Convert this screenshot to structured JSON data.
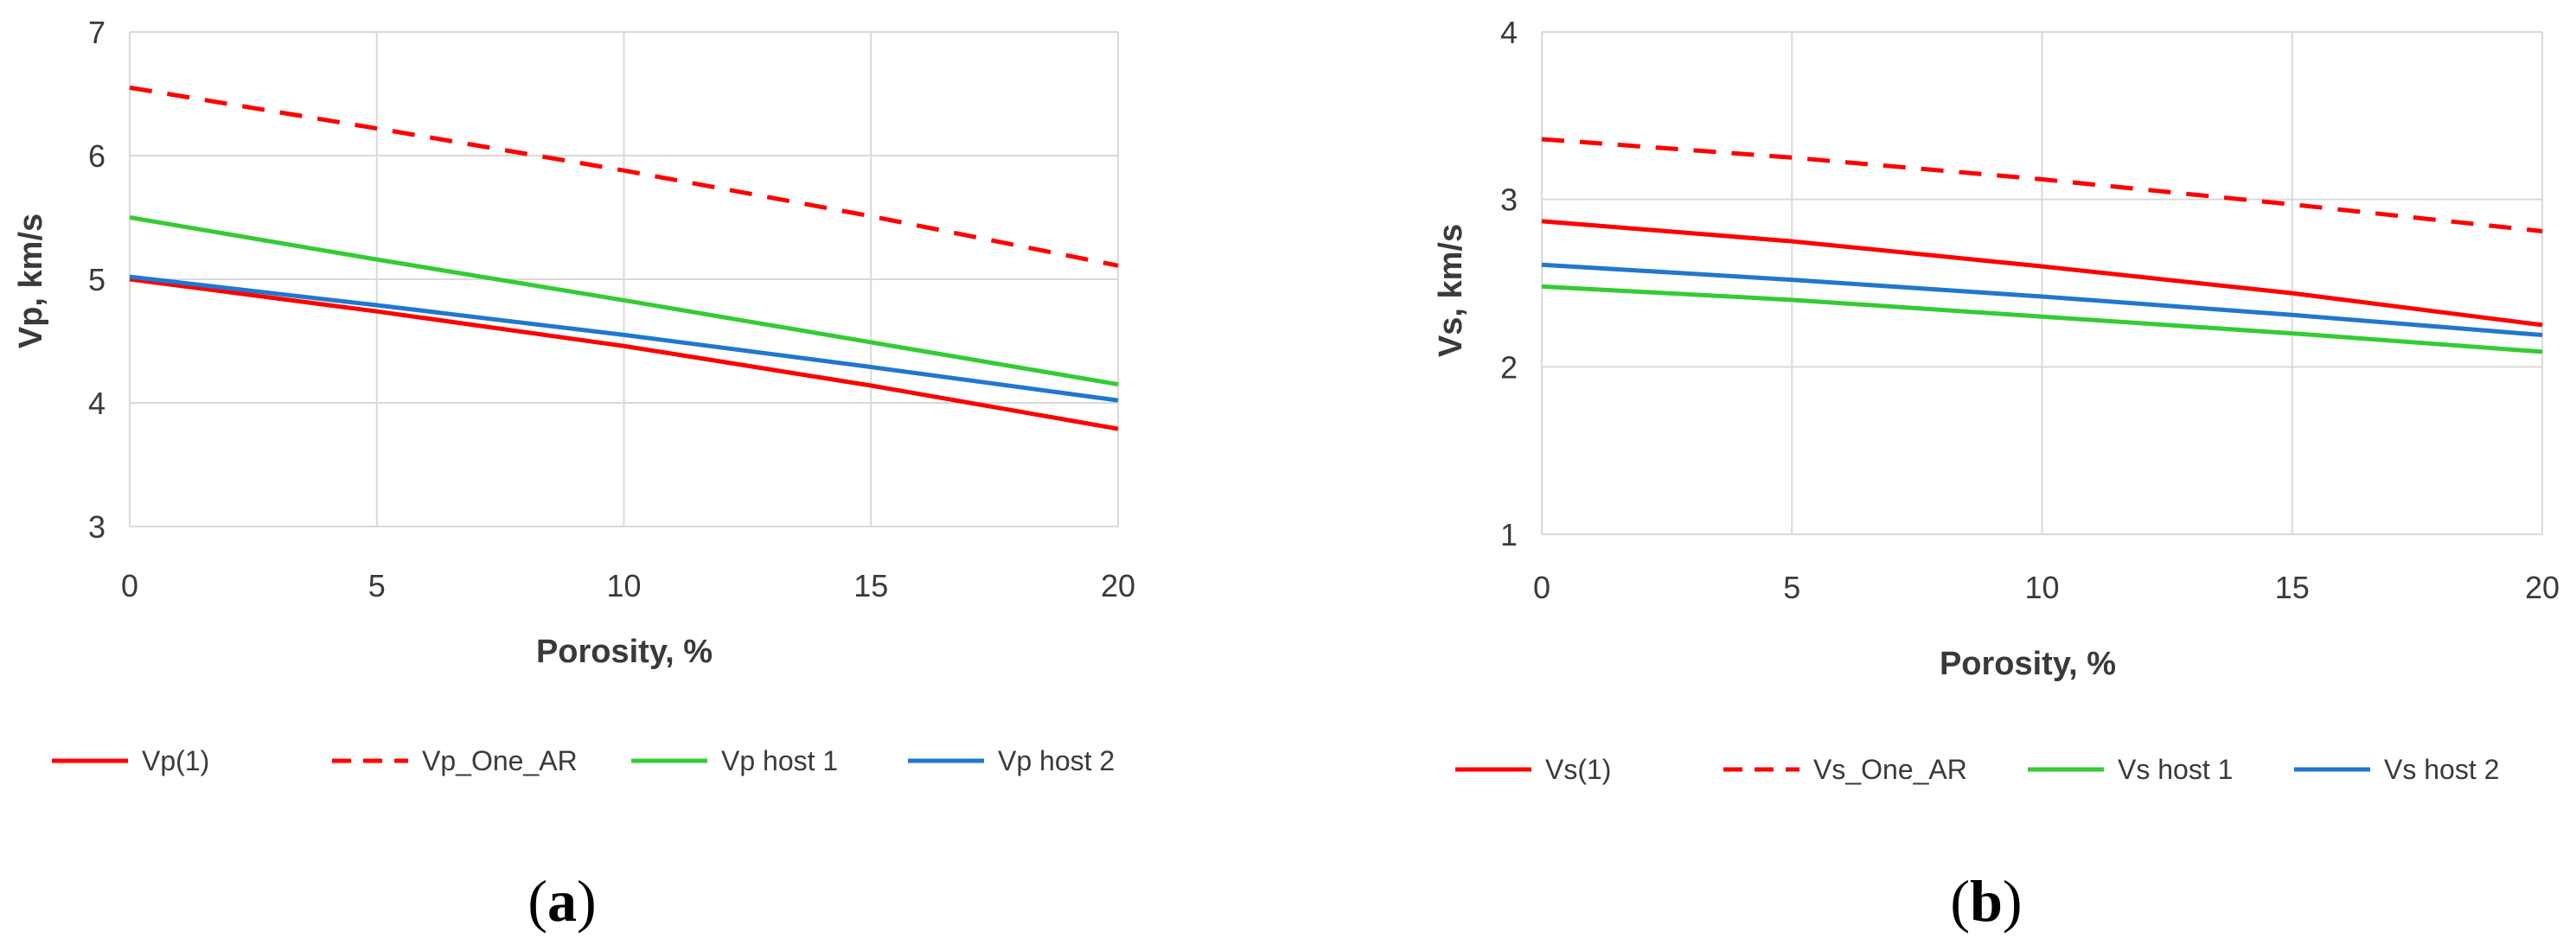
{
  "chart_data": [
    {
      "type": "line",
      "panel_label": "a",
      "xlabel": "Porosity, %",
      "ylabel": "Vp, km/s",
      "xlim": [
        0,
        20
      ],
      "ylim": [
        3,
        7
      ],
      "xticks": [
        0,
        5,
        10,
        15,
        20
      ],
      "yticks": [
        3,
        4,
        5,
        6,
        7
      ],
      "grid": true,
      "legend_position": "bottom",
      "series": [
        {
          "name": "Vp(1)",
          "color": "#ff0000",
          "dash": "solid",
          "x": [
            0,
            5,
            10,
            15,
            20
          ],
          "y": [
            5.0,
            4.74,
            4.46,
            4.14,
            3.79
          ]
        },
        {
          "name": "Vp_One_AR",
          "color": "#ff0000",
          "dash": "dashed",
          "x": [
            0,
            5,
            10,
            15,
            20
          ],
          "y": [
            6.55,
            6.22,
            5.88,
            5.51,
            5.11
          ]
        },
        {
          "name": "Vp host 1",
          "color": "#33cc33",
          "dash": "solid",
          "x": [
            0,
            5,
            10,
            15,
            20
          ],
          "y": [
            5.5,
            5.16,
            4.83,
            4.49,
            4.15
          ]
        },
        {
          "name": "Vp host 2",
          "color": "#1f77d0",
          "dash": "solid",
          "x": [
            0,
            5,
            10,
            15,
            20
          ],
          "y": [
            5.02,
            4.79,
            4.55,
            4.29,
            4.02
          ]
        }
      ]
    },
    {
      "type": "line",
      "panel_label": "b",
      "xlabel": "Porosity, %",
      "ylabel": "Vs, km/s",
      "xlim": [
        0,
        20
      ],
      "ylim": [
        1,
        4
      ],
      "xticks": [
        0,
        5,
        10,
        15,
        20
      ],
      "yticks": [
        1,
        2,
        3,
        4
      ],
      "grid": true,
      "legend_position": "bottom",
      "series": [
        {
          "name": "Vs(1)",
          "color": "#ff0000",
          "dash": "solid",
          "x": [
            0,
            5,
            10,
            15,
            20
          ],
          "y": [
            2.87,
            2.75,
            2.6,
            2.44,
            2.25
          ]
        },
        {
          "name": "Vs_One_AR",
          "color": "#ff0000",
          "dash": "dashed",
          "x": [
            0,
            5,
            10,
            15,
            20
          ],
          "y": [
            3.36,
            3.25,
            3.12,
            2.97,
            2.81
          ]
        },
        {
          "name": "Vs host 1",
          "color": "#33cc33",
          "dash": "solid",
          "x": [
            0,
            5,
            10,
            15,
            20
          ],
          "y": [
            2.48,
            2.4,
            2.3,
            2.2,
            2.09
          ]
        },
        {
          "name": "Vs host 2",
          "color": "#1f77d0",
          "dash": "solid",
          "x": [
            0,
            5,
            10,
            15,
            20
          ],
          "y": [
            2.61,
            2.52,
            2.42,
            2.31,
            2.19
          ]
        }
      ]
    }
  ]
}
